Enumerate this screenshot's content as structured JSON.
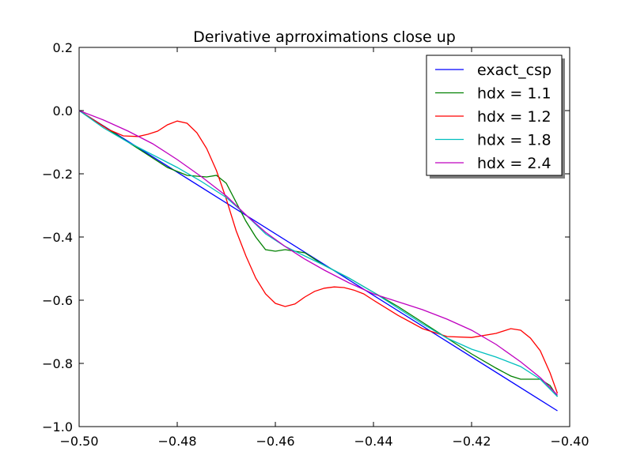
{
  "chart_data": {
    "type": "line",
    "title": "Derivative aprroximations close up",
    "xlabel": "",
    "ylabel": "",
    "xlim": [
      -0.5,
      -0.4
    ],
    "ylim": [
      -1.0,
      0.2
    ],
    "xticks": [
      -0.5,
      -0.48,
      -0.46,
      -0.44,
      -0.42,
      -0.4
    ],
    "xtick_labels": [
      "−0.50",
      "−0.48",
      "−0.46",
      "−0.44",
      "−0.42",
      "−0.40"
    ],
    "yticks": [
      0.2,
      0.0,
      -0.2,
      -0.4,
      -0.6,
      -0.8,
      -1.0
    ],
    "ytick_labels": [
      "0.2",
      "0.0",
      "−0.2",
      "−0.4",
      "−0.6",
      "−0.8",
      "−1.0"
    ],
    "grid": false,
    "legend_position": "top-right",
    "series": [
      {
        "name": "exact_csp",
        "color": "#0000ff",
        "x": [
          -0.5,
          -0.4025
        ],
        "y": [
          0.0,
          -0.95
        ]
      },
      {
        "name": "hdx = 1.1",
        "color": "#008000",
        "x": [
          -0.5,
          -0.494,
          -0.488,
          -0.482,
          -0.478,
          -0.474,
          -0.472,
          -0.47,
          -0.468,
          -0.466,
          -0.464,
          -0.462,
          -0.46,
          -0.458,
          -0.456,
          -0.454,
          -0.45,
          -0.445,
          -0.44,
          -0.435,
          -0.43,
          -0.425,
          -0.42,
          -0.415,
          -0.412,
          -0.41,
          -0.408,
          -0.406,
          -0.405,
          -0.404,
          -0.4025
        ],
        "y": [
          0.0,
          -0.06,
          -0.12,
          -0.18,
          -0.205,
          -0.21,
          -0.205,
          -0.23,
          -0.29,
          -0.35,
          -0.4,
          -0.44,
          -0.445,
          -0.44,
          -0.445,
          -0.45,
          -0.49,
          -0.53,
          -0.575,
          -0.62,
          -0.67,
          -0.72,
          -0.77,
          -0.815,
          -0.84,
          -0.85,
          -0.85,
          -0.85,
          -0.86,
          -0.87,
          -0.905
        ]
      },
      {
        "name": "hdx = 1.2",
        "color": "#ff0000",
        "x": [
          -0.5,
          -0.497,
          -0.494,
          -0.491,
          -0.488,
          -0.486,
          -0.484,
          -0.482,
          -0.48,
          -0.478,
          -0.476,
          -0.474,
          -0.472,
          -0.47,
          -0.468,
          -0.466,
          -0.464,
          -0.462,
          -0.46,
          -0.458,
          -0.456,
          -0.454,
          -0.452,
          -0.45,
          -0.448,
          -0.446,
          -0.444,
          -0.442,
          -0.44,
          -0.435,
          -0.43,
          -0.425,
          -0.42,
          -0.415,
          -0.412,
          -0.41,
          -0.408,
          -0.406,
          -0.404,
          -0.4025
        ],
        "y": [
          0.0,
          -0.03,
          -0.06,
          -0.08,
          -0.082,
          -0.075,
          -0.065,
          -0.045,
          -0.033,
          -0.04,
          -0.07,
          -0.12,
          -0.19,
          -0.28,
          -0.38,
          -0.46,
          -0.53,
          -0.58,
          -0.61,
          -0.62,
          -0.612,
          -0.59,
          -0.572,
          -0.562,
          -0.558,
          -0.56,
          -0.568,
          -0.58,
          -0.6,
          -0.648,
          -0.69,
          -0.715,
          -0.718,
          -0.705,
          -0.69,
          -0.695,
          -0.72,
          -0.76,
          -0.83,
          -0.895
        ]
      },
      {
        "name": "hdx = 1.8",
        "color": "#00bfbf",
        "x": [
          -0.5,
          -0.495,
          -0.49,
          -0.485,
          -0.48,
          -0.475,
          -0.47,
          -0.466,
          -0.462,
          -0.458,
          -0.454,
          -0.45,
          -0.445,
          -0.44,
          -0.435,
          -0.43,
          -0.425,
          -0.42,
          -0.415,
          -0.41,
          -0.406,
          -0.4025
        ],
        "y": [
          0.0,
          -0.055,
          -0.1,
          -0.14,
          -0.18,
          -0.225,
          -0.275,
          -0.33,
          -0.39,
          -0.43,
          -0.46,
          -0.49,
          -0.53,
          -0.575,
          -0.625,
          -0.675,
          -0.72,
          -0.755,
          -0.78,
          -0.81,
          -0.85,
          -0.905
        ]
      },
      {
        "name": "hdx = 2.4",
        "color": "#bf00bf",
        "x": [
          -0.5,
          -0.495,
          -0.49,
          -0.485,
          -0.48,
          -0.475,
          -0.47,
          -0.466,
          -0.462,
          -0.458,
          -0.454,
          -0.45,
          -0.445,
          -0.44,
          -0.435,
          -0.43,
          -0.425,
          -0.42,
          -0.415,
          -0.41,
          -0.406,
          -0.4025
        ],
        "y": [
          0.0,
          -0.03,
          -0.065,
          -0.105,
          -0.155,
          -0.21,
          -0.27,
          -0.33,
          -0.385,
          -0.43,
          -0.47,
          -0.505,
          -0.545,
          -0.58,
          -0.605,
          -0.63,
          -0.66,
          -0.695,
          -0.74,
          -0.795,
          -0.845,
          -0.9
        ]
      }
    ]
  }
}
